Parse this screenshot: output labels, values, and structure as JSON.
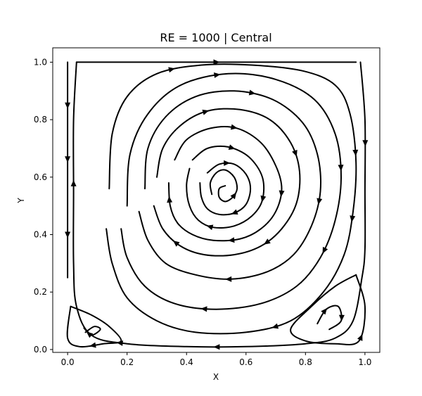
{
  "chart_data": {
    "type": "streamplot",
    "title": "RE = 1000 | Central",
    "xlabel": "X",
    "ylabel": "Y",
    "xlim": [
      -0.05,
      1.05
    ],
    "ylim": [
      -0.01,
      1.05
    ],
    "xticks": [
      0.0,
      0.2,
      0.4,
      0.6,
      0.8,
      1.0
    ],
    "xtick_labels": [
      "0.0",
      "0.2",
      "0.4",
      "0.6",
      "0.8",
      "1.0"
    ],
    "yticks": [
      0.0,
      0.2,
      0.4,
      0.6,
      0.8,
      1.0
    ],
    "ytick_labels": [
      "0.0",
      "0.2",
      "0.4",
      "0.6",
      "0.8",
      "1.0"
    ],
    "grid": false,
    "line_color": "#000000",
    "primary_vortex": {
      "center": [
        0.53,
        0.57
      ],
      "rotation": "clockwise"
    },
    "corner_vortices": [
      {
        "name": "bottom-left",
        "center": [
          0.08,
          0.07
        ]
      },
      {
        "name": "bottom-right",
        "center": [
          0.88,
          0.11
        ]
      }
    ],
    "lid": {
      "y": 1.0,
      "direction": "+x"
    },
    "streamlines": [
      {
        "points": [
          [
            0.53,
            0.57
          ],
          [
            0.51,
            0.56
          ],
          [
            0.51,
            0.53
          ],
          [
            0.53,
            0.515
          ],
          [
            0.555,
            0.53
          ],
          [
            0.57,
            0.56
          ],
          [
            0.56,
            0.6
          ],
          [
            0.53,
            0.625
          ],
          [
            0.5,
            0.615
          ],
          [
            0.48,
            0.58
          ],
          [
            0.485,
            0.54
          ]
        ],
        "arrows": [
          0.35
        ]
      },
      {
        "points": [
          [
            0.47,
            0.615
          ],
          [
            0.51,
            0.645
          ],
          [
            0.56,
            0.645
          ],
          [
            0.6,
            0.61
          ],
          [
            0.615,
            0.56
          ],
          [
            0.6,
            0.505
          ],
          [
            0.56,
            0.475
          ],
          [
            0.51,
            0.47
          ],
          [
            0.47,
            0.49
          ],
          [
            0.45,
            0.53
          ],
          [
            0.445,
            0.58
          ]
        ],
        "arrows": [
          0.15,
          0.62
        ]
      },
      {
        "points": [
          [
            0.42,
            0.66
          ],
          [
            0.47,
            0.7
          ],
          [
            0.54,
            0.705
          ],
          [
            0.61,
            0.67
          ],
          [
            0.655,
            0.6
          ],
          [
            0.655,
            0.52
          ],
          [
            0.62,
            0.465
          ],
          [
            0.56,
            0.43
          ],
          [
            0.49,
            0.425
          ],
          [
            0.44,
            0.45
          ],
          [
            0.41,
            0.5
          ],
          [
            0.4,
            0.57
          ],
          [
            0.41,
            0.63
          ]
        ],
        "arrows": [
          0.18,
          0.45,
          0.72
        ]
      },
      {
        "points": [
          [
            0.36,
            0.66
          ],
          [
            0.4,
            0.73
          ],
          [
            0.48,
            0.77
          ],
          [
            0.57,
            0.77
          ],
          [
            0.65,
            0.72
          ],
          [
            0.7,
            0.64
          ],
          [
            0.72,
            0.56
          ],
          [
            0.7,
            0.48
          ],
          [
            0.65,
            0.42
          ],
          [
            0.58,
            0.385
          ],
          [
            0.49,
            0.38
          ],
          [
            0.42,
            0.4
          ],
          [
            0.37,
            0.44
          ],
          [
            0.345,
            0.5
          ],
          [
            0.34,
            0.58
          ]
        ],
        "arrows": [
          0.22,
          0.48,
          0.7,
          0.95
        ]
      },
      {
        "points": [
          [
            0.3,
            0.6
          ],
          [
            0.32,
            0.7
          ],
          [
            0.38,
            0.78
          ],
          [
            0.47,
            0.83
          ],
          [
            0.58,
            0.835
          ],
          [
            0.68,
            0.8
          ],
          [
            0.75,
            0.72
          ],
          [
            0.78,
            0.62
          ],
          [
            0.77,
            0.51
          ],
          [
            0.72,
            0.42
          ],
          [
            0.65,
            0.36
          ],
          [
            0.56,
            0.33
          ],
          [
            0.46,
            0.33
          ],
          [
            0.38,
            0.36
          ],
          [
            0.32,
            0.42
          ],
          [
            0.29,
            0.5
          ]
        ],
        "arrows": [
          0.2,
          0.45,
          0.68,
          0.9
        ]
      },
      {
        "points": [
          [
            0.26,
            0.56
          ],
          [
            0.27,
            0.7
          ],
          [
            0.33,
            0.81
          ],
          [
            0.43,
            0.88
          ],
          [
            0.56,
            0.9
          ],
          [
            0.69,
            0.87
          ],
          [
            0.79,
            0.79
          ],
          [
            0.84,
            0.68
          ],
          [
            0.85,
            0.55
          ],
          [
            0.82,
            0.43
          ],
          [
            0.76,
            0.33
          ],
          [
            0.67,
            0.27
          ],
          [
            0.55,
            0.245
          ],
          [
            0.43,
            0.26
          ],
          [
            0.33,
            0.3
          ],
          [
            0.27,
            0.38
          ],
          [
            0.24,
            0.48
          ]
        ],
        "arrows": [
          0.3,
          0.55,
          0.78
        ]
      },
      {
        "points": [
          [
            0.2,
            0.5
          ],
          [
            0.21,
            0.68
          ],
          [
            0.27,
            0.82
          ],
          [
            0.38,
            0.92
          ],
          [
            0.54,
            0.96
          ],
          [
            0.7,
            0.94
          ],
          [
            0.83,
            0.87
          ],
          [
            0.9,
            0.75
          ],
          [
            0.92,
            0.6
          ],
          [
            0.9,
            0.45
          ],
          [
            0.85,
            0.32
          ],
          [
            0.77,
            0.22
          ],
          [
            0.65,
            0.16
          ],
          [
            0.5,
            0.14
          ],
          [
            0.36,
            0.16
          ],
          [
            0.26,
            0.22
          ],
          [
            0.2,
            0.32
          ],
          [
            0.18,
            0.42
          ]
        ],
        "arrows": [
          0.25,
          0.5,
          0.62,
          0.82
        ]
      },
      {
        "points": [
          [
            0.14,
            0.56
          ],
          [
            0.15,
            0.75
          ],
          [
            0.2,
            0.88
          ],
          [
            0.3,
            0.96
          ],
          [
            0.45,
            0.99
          ],
          [
            0.62,
            0.99
          ],
          [
            0.79,
            0.97
          ],
          [
            0.9,
            0.92
          ],
          [
            0.95,
            0.82
          ],
          [
            0.97,
            0.65
          ],
          [
            0.96,
            0.48
          ],
          [
            0.93,
            0.33
          ],
          [
            0.86,
            0.2
          ],
          [
            0.75,
            0.1
          ],
          [
            0.6,
            0.06
          ],
          [
            0.43,
            0.06
          ],
          [
            0.3,
            0.1
          ],
          [
            0.2,
            0.18
          ],
          [
            0.15,
            0.3
          ],
          [
            0.13,
            0.42
          ]
        ],
        "arrows": [
          0.18,
          0.47,
          0.55,
          0.72
        ]
      },
      {
        "points": [
          [
            0.03,
            1.0
          ],
          [
            0.3,
            1.0
          ],
          [
            0.65,
            1.0
          ],
          [
            0.97,
            1.0
          ]
        ],
        "arrows": [
          0.5
        ]
      },
      {
        "points": [
          [
            0.985,
            1.0
          ],
          [
            1.0,
            0.8
          ],
          [
            1.0,
            0.55
          ],
          [
            1.0,
            0.35
          ],
          [
            0.99,
            0.25
          ],
          [
            0.96,
            0.1
          ],
          [
            0.9,
            0.04
          ],
          [
            0.8,
            0.02
          ],
          [
            0.6,
            0.01
          ],
          [
            0.4,
            0.01
          ],
          [
            0.2,
            0.02
          ],
          [
            0.08,
            0.05
          ],
          [
            0.03,
            0.15
          ],
          [
            0.02,
            0.3
          ],
          [
            0.02,
            0.55
          ],
          [
            0.02,
            0.8
          ],
          [
            0.03,
            1.0
          ]
        ],
        "arrows": [
          0.1,
          0.5,
          0.62,
          0.85
        ]
      },
      {
        "points": [
          [
            0.0,
            1.0
          ],
          [
            0.0,
            0.82
          ],
          [
            0.0,
            0.65
          ],
          [
            0.0,
            0.45
          ],
          [
            0.0,
            0.25
          ]
        ],
        "arrows": [
          0.2,
          0.45,
          0.8
        ]
      },
      {
        "points": [
          [
            0.01,
            0.15
          ],
          [
            0.08,
            0.12
          ],
          [
            0.14,
            0.08
          ],
          [
            0.18,
            0.03
          ],
          [
            0.12,
            0.02
          ],
          [
            0.04,
            0.01
          ],
          [
            0.0,
            0.04
          ],
          [
            0.01,
            0.15
          ]
        ],
        "arrows": [
          0.6
        ]
      },
      {
        "points": [
          [
            0.06,
            0.06
          ],
          [
            0.09,
            0.08
          ],
          [
            0.11,
            0.07
          ],
          [
            0.08,
            0.05
          ],
          [
            0.055,
            0.075
          ]
        ],
        "arrows": [
          0.8
        ]
      },
      {
        "points": [
          [
            0.97,
            0.26
          ],
          [
            0.9,
            0.22
          ],
          [
            0.82,
            0.15
          ],
          [
            0.75,
            0.07
          ],
          [
            0.8,
            0.03
          ],
          [
            0.9,
            0.02
          ],
          [
            0.98,
            0.03
          ],
          [
            1.0,
            0.15
          ],
          [
            0.97,
            0.26
          ]
        ],
        "arrows": [
          0.72
        ]
      },
      {
        "points": [
          [
            0.84,
            0.09
          ],
          [
            0.87,
            0.14
          ],
          [
            0.91,
            0.15
          ],
          [
            0.92,
            0.1
          ],
          [
            0.88,
            0.07
          ]
        ],
        "arrows": [
          0.25,
          0.7
        ]
      }
    ]
  }
}
